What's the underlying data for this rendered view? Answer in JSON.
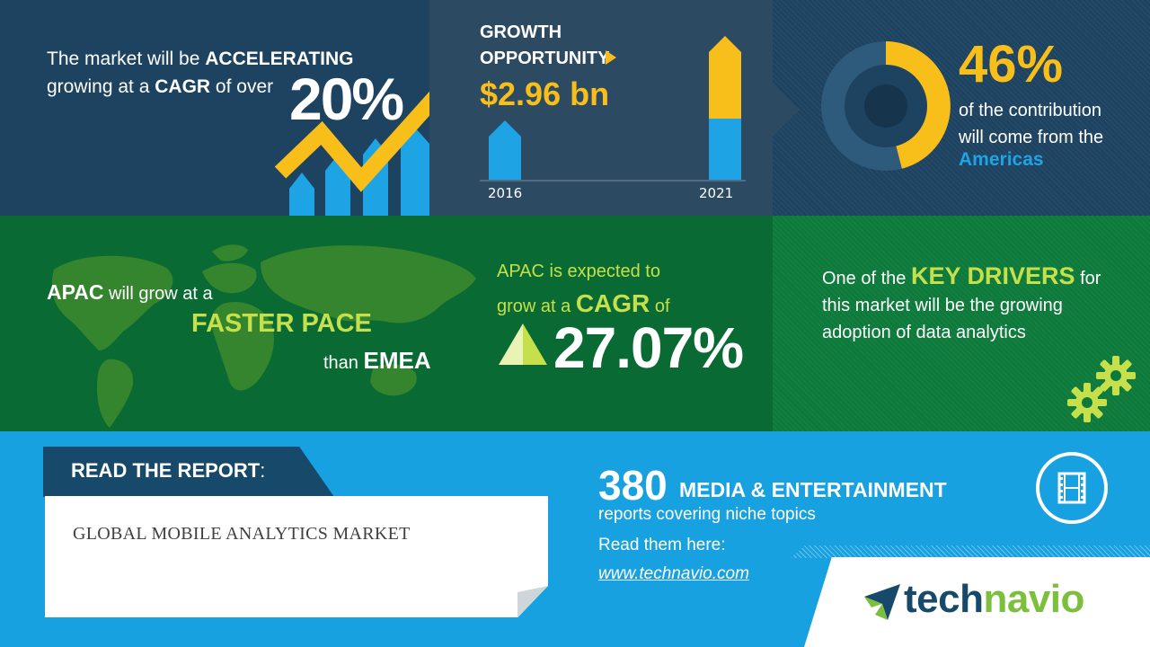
{
  "growth_panel": {
    "line1_pre": "The market will be ",
    "line1_bold": "ACCELERATING",
    "line2_pre": "growing at a ",
    "line2_bold": "CAGR",
    "line2_post": " of over",
    "cagr_value": "20%"
  },
  "opportunity_panel": {
    "label_line1": "GROWTH",
    "label_line2": "OPPORTUNITY",
    "value": "$2.96 bn",
    "year_start": "2016",
    "year_end": "2021"
  },
  "contribution_panel": {
    "percent": "46%",
    "text_line1": "of the contribution",
    "text_line2": "will come from the",
    "region": "Americas",
    "donut_share": 0.46
  },
  "apac_panel": {
    "subject": "APAC",
    "line1_post": " will grow at a",
    "emphasis": "FASTER PACE",
    "than_pre": "than ",
    "than_bold": "EMEA"
  },
  "apac_cagr_panel": {
    "line1": "APAC is expected to",
    "line2_pre": "grow at a ",
    "line2_bold": "CAGR",
    "line2_post": " of",
    "value": "27.07%"
  },
  "drivers_panel": {
    "line1_pre": "One of the ",
    "line1_bold": "KEY DRIVERS",
    "line1_post": " for",
    "line2": "this market will be the growing",
    "line3": "adoption of data analytics"
  },
  "report_panel": {
    "label": "READ THE REPORT",
    "label_suffix": ":",
    "title": "GLOBAL MOBILE ANALYTICS MARKET"
  },
  "promo_panel": {
    "count": "380",
    "category": "MEDIA & ENTERTAINMENT",
    "line1": "reports covering niche topics",
    "line2": "Read them here:",
    "link": "www.technavio.com"
  },
  "brand": {
    "part1": "tech",
    "part2": "navio"
  },
  "colors": {
    "accent_yellow": "#f8be1a",
    "accent_blue": "#1ea4e4",
    "accent_green": "#c5e04b",
    "navy": "#1d4361"
  },
  "icons": [
    "growth-arrow-icon",
    "world-map-icon",
    "triangle-icon",
    "gear-icon",
    "film-icon",
    "technavio-logo-icon"
  ]
}
